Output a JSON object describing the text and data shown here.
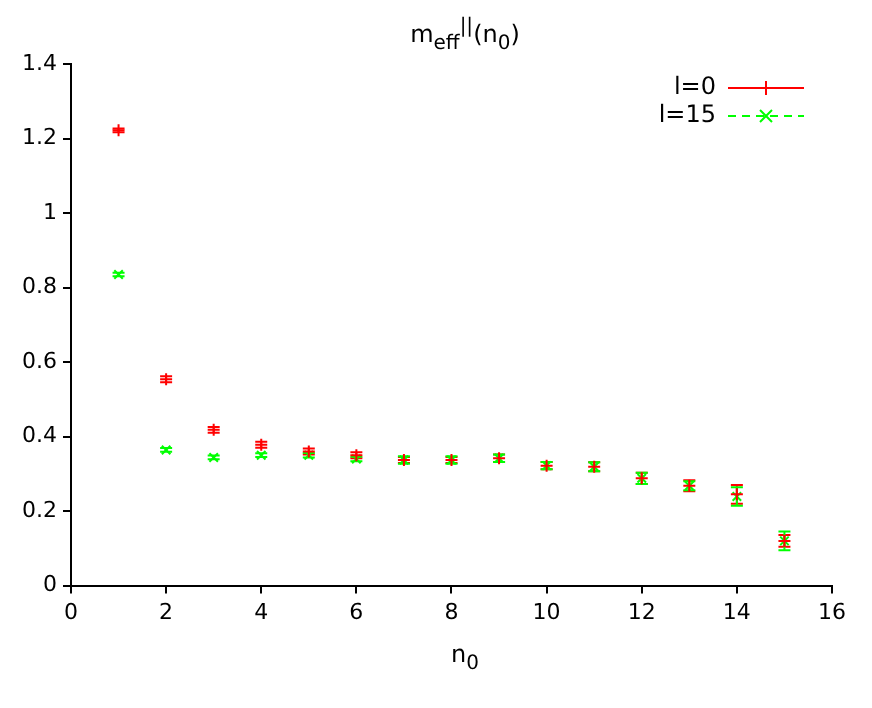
{
  "chart_data": {
    "type": "scatter",
    "title": "m$_{eff}$$^{||}$(n$_{0}$)",
    "xlabel": "n$_{0}$",
    "x": [
      1,
      2,
      3,
      4,
      5,
      6,
      7,
      8,
      9,
      10,
      11,
      12,
      13,
      14,
      15
    ],
    "xlim": [
      0,
      16
    ],
    "xticks": [
      0,
      2,
      4,
      6,
      8,
      10,
      12,
      14,
      16
    ],
    "ylim": [
      0,
      1.4
    ],
    "yticks": [
      0,
      0.2,
      0.4,
      0.6,
      0.8,
      1,
      1.2,
      1.4
    ],
    "grid": false,
    "legend": "top right",
    "series": [
      {
        "name": "l=0",
        "color": "#ff0000",
        "marker": "cross",
        "line_style": "solid",
        "values": [
          1.222,
          0.554,
          0.418,
          0.378,
          0.36,
          0.35,
          0.337,
          0.337,
          0.342,
          0.322,
          0.319,
          0.288,
          0.268,
          0.245,
          0.12
        ],
        "errors": [
          0.005,
          0.008,
          0.008,
          0.008,
          0.008,
          0.008,
          0.008,
          0.008,
          0.01,
          0.01,
          0.012,
          0.015,
          0.015,
          0.025,
          0.016
        ]
      },
      {
        "name": "l=15",
        "color": "#00ff00",
        "marker": "x",
        "line_style": "dashed",
        "values": [
          0.835,
          0.364,
          0.344,
          0.35,
          0.35,
          0.34,
          0.337,
          0.337,
          0.342,
          0.322,
          0.319,
          0.288,
          0.268,
          0.239,
          0.12
        ],
        "errors": [
          0.005,
          0.005,
          0.005,
          0.005,
          0.006,
          0.006,
          0.01,
          0.01,
          0.01,
          0.01,
          0.012,
          0.015,
          0.012,
          0.025,
          0.025
        ]
      }
    ]
  }
}
